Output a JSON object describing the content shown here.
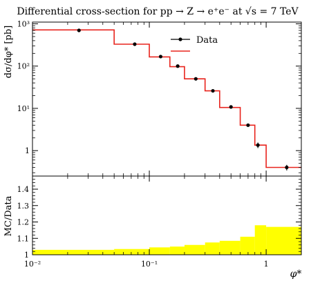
{
  "chart_data": [
    {
      "type": "line",
      "title": "Differential cross-section for pp → Z → e⁺e⁻ at √s = 7 TeV",
      "ylabel": "dσ/dφ* [pb]",
      "xlabel": "",
      "x_scale": "log",
      "y_scale": "log",
      "xlim": [
        0.01,
        2.0
      ],
      "ylim": [
        0.25,
        1100
      ],
      "y_tick_labels": [
        "10³",
        "10²",
        "10¹",
        "1"
      ],
      "legend": {
        "position": "top-right",
        "entries": [
          "Data",
          ""
        ]
      },
      "series": [
        {
          "name": "Data",
          "marker": "point-with-error-bars",
          "points": [
            {
              "x": 0.025,
              "y": 700,
              "yerr": 15
            },
            {
              "x": 0.075,
              "y": 330,
              "yerr": 8
            },
            {
              "x": 0.125,
              "y": 168,
              "yerr": 5
            },
            {
              "x": 0.175,
              "y": 100,
              "yerr": 3
            },
            {
              "x": 0.25,
              "y": 50,
              "yerr": 2
            },
            {
              "x": 0.35,
              "y": 26,
              "yerr": 1.2
            },
            {
              "x": 0.5,
              "y": 10.8,
              "yerr": 0.5
            },
            {
              "x": 0.7,
              "y": 4.0,
              "yerr": 0.3
            },
            {
              "x": 0.85,
              "y": 1.35,
              "yerr": 0.2
            },
            {
              "x": 1.5,
              "y": 0.4,
              "yerr": 0.06
            }
          ]
        },
        {
          "name": "",
          "color": "#e8231c",
          "style": "histogram",
          "bins": [
            {
              "x_low": 0.01,
              "x_high": 0.05,
              "y": 720
            },
            {
              "x_low": 0.05,
              "x_high": 0.1,
              "y": 330
            },
            {
              "x_low": 0.1,
              "x_high": 0.15,
              "y": 165
            },
            {
              "x_low": 0.15,
              "x_high": 0.2,
              "y": 97
            },
            {
              "x_low": 0.2,
              "x_high": 0.3,
              "y": 50
            },
            {
              "x_low": 0.3,
              "x_high": 0.4,
              "y": 26
            },
            {
              "x_low": 0.4,
              "x_high": 0.6,
              "y": 10.5
            },
            {
              "x_low": 0.6,
              "x_high": 0.8,
              "y": 4.0
            },
            {
              "x_low": 0.8,
              "x_high": 1.0,
              "y": 1.35
            },
            {
              "x_low": 1.0,
              "x_high": 2.0,
              "y": 0.4
            }
          ]
        }
      ]
    },
    {
      "type": "area",
      "ylabel": "MC/Data",
      "xlabel": "φ*",
      "x_scale": "log",
      "xlim": [
        0.01,
        2.0
      ],
      "ylim": [
        1.0,
        1.48
      ],
      "x_tick_labels": [
        "10⁻²",
        "10⁻¹",
        "1"
      ],
      "y_tick_labels": [
        "1",
        "1.1",
        "1.2",
        "1.3",
        "1.4"
      ],
      "y_ticks": [
        1.0,
        1.1,
        1.2,
        1.3,
        1.4
      ],
      "band_color": "#ffff00",
      "bins": [
        {
          "x_low": 0.01,
          "x_high": 0.05,
          "y": 1.03
        },
        {
          "x_low": 0.05,
          "x_high": 0.1,
          "y": 1.035
        },
        {
          "x_low": 0.1,
          "x_high": 0.15,
          "y": 1.045
        },
        {
          "x_low": 0.15,
          "x_high": 0.2,
          "y": 1.05
        },
        {
          "x_low": 0.2,
          "x_high": 0.3,
          "y": 1.06
        },
        {
          "x_low": 0.3,
          "x_high": 0.4,
          "y": 1.075
        },
        {
          "x_low": 0.4,
          "x_high": 0.6,
          "y": 1.085
        },
        {
          "x_low": 0.6,
          "x_high": 0.8,
          "y": 1.11
        },
        {
          "x_low": 0.8,
          "x_high": 1.0,
          "y": 1.18
        },
        {
          "x_low": 1.0,
          "x_high": 2.0,
          "y": 1.17
        }
      ]
    }
  ]
}
